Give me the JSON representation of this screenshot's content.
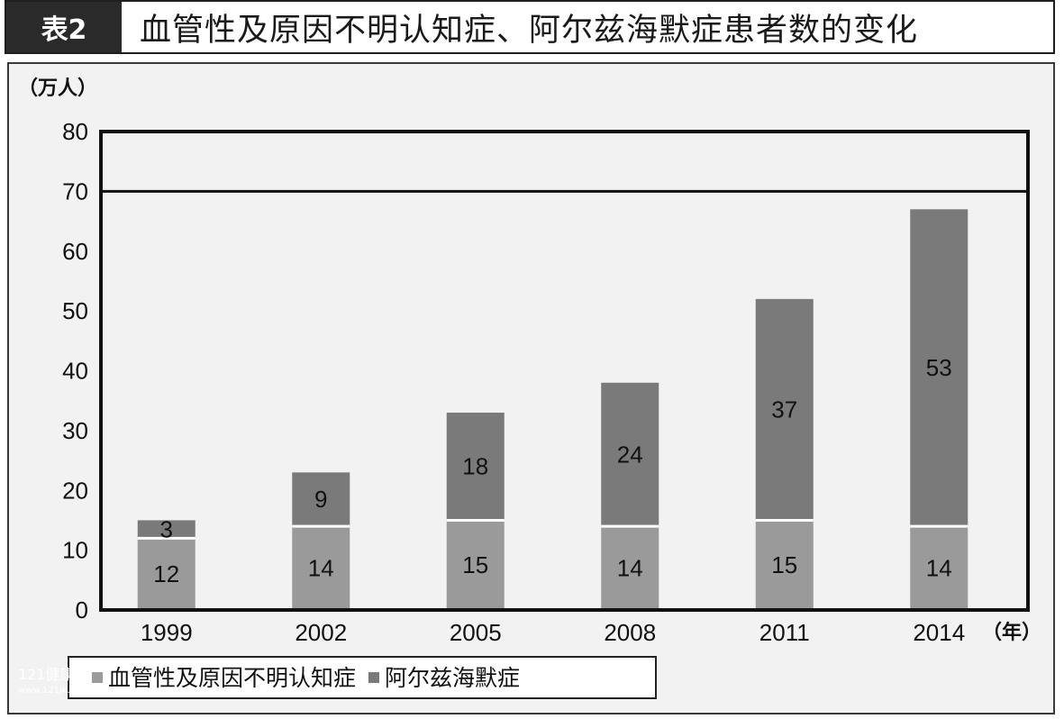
{
  "header": {
    "badge": "表2",
    "title": "血管性及原因不明认知症、阿尔兹海默症患者数的变化"
  },
  "watermark": {
    "line1": "121健康网",
    "line2": "www.121jk.cn"
  },
  "chart_data": {
    "type": "bar",
    "stacked": true,
    "y_unit_label": "（万人）",
    "x_unit_label": "（年）",
    "categories": [
      "1999",
      "2002",
      "2005",
      "2008",
      "2011",
      "2014"
    ],
    "series": [
      {
        "name": "血管性及原因不明认知症",
        "values": [
          12,
          14,
          15,
          14,
          15,
          14
        ],
        "color": "#9a9a9a"
      },
      {
        "name": "阿尔兹海默症",
        "values": [
          3,
          9,
          18,
          24,
          37,
          53
        ],
        "color": "#7a7a7a"
      }
    ],
    "ylim": [
      0,
      80
    ],
    "yticks": [
      0,
      10,
      20,
      30,
      40,
      50,
      60,
      70,
      80
    ],
    "reference_line": 70,
    "legend_position": "bottom-left"
  }
}
